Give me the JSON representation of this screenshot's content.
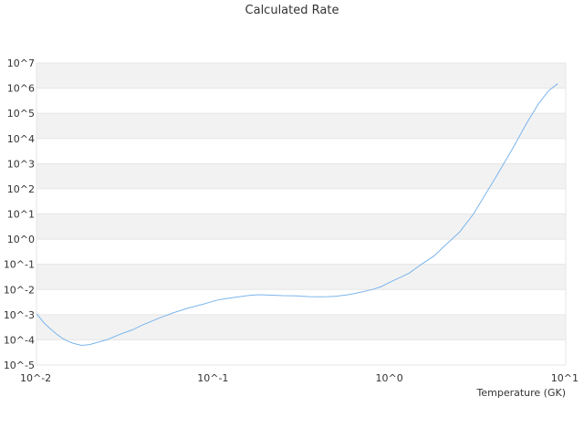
{
  "chart_data": {
    "type": "line",
    "title": "Calculated Rate",
    "xlabel": "Temperature (GK)",
    "ylabel": "",
    "x_scale": "log",
    "y_scale": "log",
    "xlim": [
      0.01,
      10
    ],
    "ylim": [
      1e-05,
      10000000
    ],
    "x_ticks": [
      {
        "value": 0.01,
        "label": "10^-2"
      },
      {
        "value": 0.1,
        "label": "10^-1"
      },
      {
        "value": 1,
        "label": "10^0"
      },
      {
        "value": 10,
        "label": "10^1"
      }
    ],
    "y_ticks": [
      {
        "value": 10000000,
        "label": "10^7"
      },
      {
        "value": 1000000,
        "label": "10^6"
      },
      {
        "value": 100000,
        "label": "10^5"
      },
      {
        "value": 10000,
        "label": "10^4"
      },
      {
        "value": 1000,
        "label": "10^3"
      },
      {
        "value": 100,
        "label": "10^2"
      },
      {
        "value": 10,
        "label": "10^1"
      },
      {
        "value": 1,
        "label": "10^0"
      },
      {
        "value": 0.1,
        "label": "10^-1"
      },
      {
        "value": 0.01,
        "label": "10^-2"
      },
      {
        "value": 0.001,
        "label": "10^-3"
      },
      {
        "value": 0.0001,
        "label": "10^-4"
      },
      {
        "value": 1e-05,
        "label": "10^-5"
      }
    ],
    "grid": "horizontal bands",
    "legend": "none",
    "colors": {
      "line": "#7cb5ec",
      "band": "#f2f2f2",
      "grid": "#e6e6e6"
    },
    "series": [
      {
        "x": [
          0.01,
          0.011,
          0.012,
          0.013,
          0.014,
          0.015,
          0.016,
          0.018,
          0.02,
          0.022,
          0.025,
          0.03,
          0.035,
          0.04,
          0.05,
          0.06,
          0.07,
          0.08,
          0.09,
          0.1,
          0.11,
          0.12,
          0.14,
          0.16,
          0.18,
          0.2,
          0.25,
          0.3,
          0.35,
          0.4,
          0.45,
          0.5,
          0.6,
          0.7,
          0.8,
          0.9,
          1.0,
          1.1,
          1.3,
          1.5,
          1.8,
          2.0,
          2.5,
          3.0,
          3.5,
          4.0,
          5.0,
          6.0,
          7.0,
          8.0,
          9.0
        ],
        "y": [
          0.0011,
          0.00048,
          0.00027,
          0.00017,
          0.000115,
          9e-05,
          7.4e-05,
          6e-05,
          6.5e-05,
          7.8e-05,
          0.0001,
          0.00017,
          0.00025,
          0.00039,
          0.00075,
          0.0012,
          0.0017,
          0.0022,
          0.0027,
          0.0034,
          0.004,
          0.0044,
          0.0051,
          0.0058,
          0.0062,
          0.0061,
          0.0057,
          0.0056,
          0.0052,
          0.0051,
          0.0052,
          0.0054,
          0.0064,
          0.008,
          0.01,
          0.013,
          0.019,
          0.026,
          0.045,
          0.094,
          0.22,
          0.45,
          1.9,
          10,
          60,
          280,
          4000,
          40000,
          240000,
          800000,
          1500000
        ]
      }
    ]
  }
}
